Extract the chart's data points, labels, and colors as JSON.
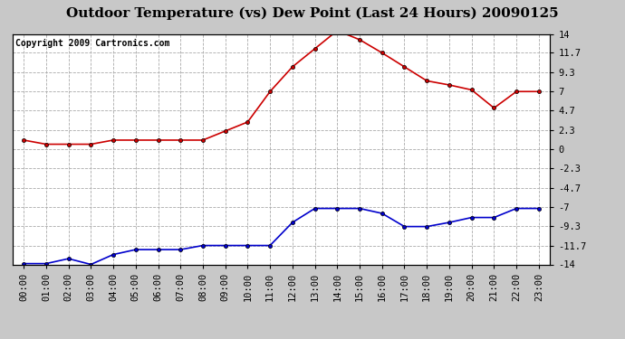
{
  "title": "Outdoor Temperature (vs) Dew Point (Last 24 Hours) 20090125",
  "copyright_text": "Copyright 2009 Cartronics.com",
  "x_labels": [
    "00:00",
    "01:00",
    "02:00",
    "03:00",
    "04:00",
    "05:00",
    "06:00",
    "07:00",
    "08:00",
    "09:00",
    "10:00",
    "11:00",
    "12:00",
    "13:00",
    "14:00",
    "15:00",
    "16:00",
    "17:00",
    "18:00",
    "19:00",
    "20:00",
    "21:00",
    "22:00",
    "23:00"
  ],
  "y_ticks": [
    -14.0,
    -11.7,
    -9.3,
    -7.0,
    -4.7,
    -2.3,
    0.0,
    2.3,
    4.7,
    7.0,
    9.3,
    11.7,
    14.0
  ],
  "ylim": [
    -14.0,
    14.0
  ],
  "temp_data": [
    1.1,
    0.6,
    0.6,
    0.6,
    1.1,
    1.1,
    1.1,
    1.1,
    1.1,
    2.2,
    3.3,
    7.0,
    10.0,
    12.2,
    14.4,
    13.3,
    11.7,
    10.0,
    8.3,
    7.8,
    7.2,
    5.0,
    7.0,
    7.0
  ],
  "dew_data": [
    -13.9,
    -13.9,
    -13.3,
    -14.0,
    -12.8,
    -12.2,
    -12.2,
    -12.2,
    -11.7,
    -11.7,
    -11.7,
    -11.7,
    -8.9,
    -7.2,
    -7.2,
    -7.2,
    -7.8,
    -9.4,
    -9.4,
    -8.9,
    -8.3,
    -8.3,
    -7.2,
    -7.2
  ],
  "temp_color": "#cc0000",
  "dew_color": "#0000cc",
  "bg_color": "#c8c8c8",
  "plot_bg_color": "#ffffff",
  "grid_color": "#aaaaaa",
  "title_fontsize": 11,
  "tick_fontsize": 7.5,
  "copyright_fontsize": 7
}
